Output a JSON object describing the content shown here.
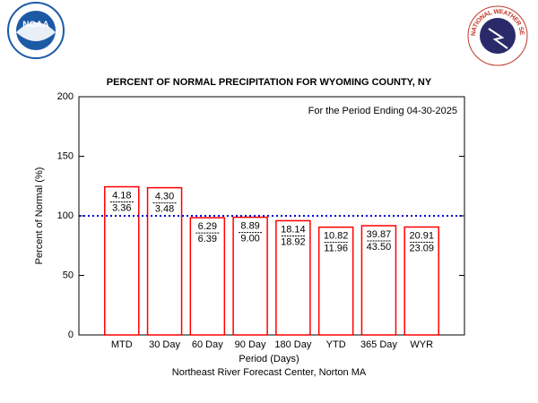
{
  "chart_data": {
    "type": "bar",
    "title": "PERCENT OF NORMAL PRECIPITATION FOR WYOMING COUNTY, NY",
    "subtitle": "For the Period Ending 04-30-2025",
    "xlabel": "Period (Days)",
    "ylabel": "Percent of Normal (%)",
    "footer": "Northeast River Forecast Center, Norton MA",
    "logos": {
      "left": "NOAA",
      "right": "NATIONAL WEATHER SERVICE"
    },
    "categories": [
      "MTD",
      "30 Day",
      "60 Day",
      "90 Day",
      "180 Day",
      "YTD",
      "365 Day",
      "WYR"
    ],
    "values": [
      124.4,
      123.6,
      98.4,
      98.8,
      95.9,
      90.5,
      91.7,
      90.6
    ],
    "observed_labels": [
      "4.18",
      "4.30",
      "6.29",
      "8.89",
      "18.14",
      "10.82",
      "39.87",
      "20.91"
    ],
    "normal_labels": [
      "3.36",
      "3.48",
      "6.39",
      "9.00",
      "18.92",
      "11.96",
      "43.50",
      "23.09"
    ],
    "color": "#ff0000",
    "reference_line": {
      "value": 100,
      "color": "#0000cc"
    },
    "ylim": [
      0,
      200
    ],
    "yticks": [
      0,
      50,
      100,
      150,
      200
    ]
  }
}
